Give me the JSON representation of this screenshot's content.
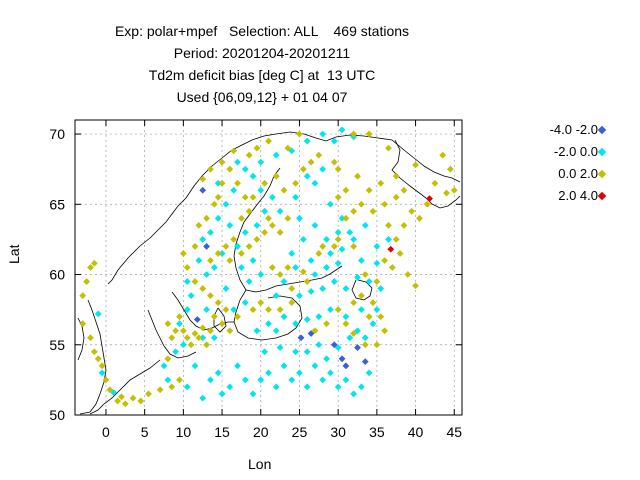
{
  "chart_data": {
    "type": "scatter",
    "title": [
      "Exp: polar+mpef   Selection: ALL    469 stations",
      "Period: 20201204-20201211",
      "Td2m deficit bias [deg C] at  13 UTC",
      "Used {06,09,12} + 01 04 07"
    ],
    "xlabel": "Lon",
    "ylabel": "Lat",
    "xlim": [
      -4,
      46
    ],
    "ylim": [
      50,
      71
    ],
    "xticks": [
      0,
      5,
      10,
      15,
      20,
      25,
      30,
      35,
      40,
      45
    ],
    "yticks": [
      50,
      55,
      60,
      65,
      70
    ],
    "grid": true,
    "legend_position": "right",
    "series": [
      {
        "name": "-4.0 -2.0",
        "color": "#3a5fd9",
        "points": [
          [
            12.5,
            66.0
          ],
          [
            13.0,
            62.0
          ],
          [
            11.8,
            56.8
          ],
          [
            25.2,
            55.5
          ],
          [
            26.5,
            55.8
          ],
          [
            29.5,
            55.0
          ],
          [
            30.5,
            54.0
          ],
          [
            31.0,
            53.5
          ],
          [
            32.5,
            54.8
          ],
          [
            33.5,
            53.8
          ]
        ]
      },
      {
        "name": "-2.0 0.0",
        "color": "#00e5ee",
        "points": [
          [
            -1.0,
            57.2
          ],
          [
            -0.5,
            53.0
          ],
          [
            1.0,
            51.6
          ],
          [
            7.5,
            53.5
          ],
          [
            8.0,
            52.5
          ],
          [
            9.0,
            54.5
          ],
          [
            10.5,
            52.0
          ],
          [
            11.5,
            53.5
          ],
          [
            12.5,
            51.2
          ],
          [
            13.5,
            52.5
          ],
          [
            14.5,
            53.0
          ],
          [
            15.0,
            51.5
          ],
          [
            16.0,
            52.0
          ],
          [
            17.0,
            53.5
          ],
          [
            18.0,
            52.5
          ],
          [
            19.0,
            51.5
          ],
          [
            20.0,
            52.5
          ],
          [
            21.0,
            53.0
          ],
          [
            22.0,
            52.0
          ],
          [
            23.0,
            53.5
          ],
          [
            24.0,
            52.5
          ],
          [
            25.0,
            53.0
          ],
          [
            26.0,
            52.0
          ],
          [
            27.0,
            53.5
          ],
          [
            28.0,
            52.5
          ],
          [
            29.0,
            53.0
          ],
          [
            30.0,
            52.0
          ],
          [
            31.0,
            52.5
          ],
          [
            32.0,
            51.5
          ],
          [
            33.0,
            52.0
          ],
          [
            34.0,
            53.0
          ],
          [
            20.5,
            54.5
          ],
          [
            22.5,
            54.8
          ],
          [
            24.5,
            54.5
          ],
          [
            26.0,
            54.5
          ],
          [
            27.5,
            55.0
          ],
          [
            28.5,
            54.0
          ],
          [
            30.0,
            54.8
          ],
          [
            31.5,
            55.5
          ],
          [
            32.5,
            56.0
          ],
          [
            33.5,
            55.5
          ],
          [
            34.5,
            56.5
          ],
          [
            35.0,
            57.5
          ],
          [
            33.0,
            57.5
          ],
          [
            31.0,
            57.0
          ],
          [
            29.0,
            57.5
          ],
          [
            27.5,
            57.0
          ],
          [
            26.0,
            56.8
          ],
          [
            24.5,
            56.5
          ],
          [
            23.0,
            57.0
          ],
          [
            22.0,
            56.0
          ],
          [
            21.0,
            56.5
          ],
          [
            19.5,
            56.0
          ],
          [
            25.0,
            58.5
          ],
          [
            26.5,
            58.8
          ],
          [
            28.0,
            59.0
          ],
          [
            29.5,
            59.5
          ],
          [
            31.0,
            59.0
          ],
          [
            32.5,
            59.8
          ],
          [
            34.0,
            59.5
          ],
          [
            35.5,
            59.0
          ],
          [
            27.0,
            60.0
          ],
          [
            28.5,
            60.5
          ],
          [
            30.0,
            60.8
          ],
          [
            24.5,
            60.5
          ],
          [
            23.0,
            59.5
          ],
          [
            22.0,
            58.5
          ],
          [
            20.0,
            60.0
          ],
          [
            18.5,
            59.5
          ],
          [
            19.0,
            61.0
          ],
          [
            17.5,
            60.5
          ],
          [
            17.0,
            62.0
          ],
          [
            18.0,
            63.0
          ],
          [
            19.5,
            63.5
          ],
          [
            20.5,
            64.5
          ],
          [
            21.5,
            65.5
          ],
          [
            22.5,
            64.5
          ],
          [
            20.0,
            66.0
          ],
          [
            19.0,
            67.0
          ],
          [
            18.0,
            67.5
          ],
          [
            16.5,
            66.0
          ],
          [
            15.5,
            65.0
          ],
          [
            14.5,
            64.0
          ],
          [
            13.5,
            63.0
          ],
          [
            12.5,
            62.5
          ],
          [
            12.0,
            61.0
          ],
          [
            13.0,
            60.0
          ],
          [
            14.0,
            60.5
          ],
          [
            15.0,
            61.5
          ],
          [
            16.0,
            63.5
          ],
          [
            14.5,
            66.5
          ],
          [
            17.0,
            68.0
          ],
          [
            20.0,
            68.0
          ],
          [
            22.0,
            68.5
          ],
          [
            24.0,
            68.8
          ],
          [
            26.0,
            69.5
          ],
          [
            28.0,
            70.0
          ],
          [
            29.5,
            69.5
          ],
          [
            30.5,
            70.3
          ],
          [
            32.0,
            69.8
          ],
          [
            27.0,
            66.5
          ],
          [
            29.0,
            65.0
          ],
          [
            30.5,
            64.0
          ],
          [
            31.5,
            63.0
          ],
          [
            30.0,
            63.0
          ],
          [
            28.5,
            62.5
          ],
          [
            29.0,
            61.5
          ],
          [
            30.5,
            61.8
          ],
          [
            32.0,
            62.5
          ],
          [
            33.5,
            63.5
          ],
          [
            35.0,
            62.0
          ],
          [
            36.5,
            62.5
          ],
          [
            35.0,
            60.8
          ],
          [
            33.0,
            61.0
          ],
          [
            10.5,
            57.5
          ],
          [
            9.5,
            56.5
          ],
          [
            10.0,
            55.0
          ],
          [
            12.5,
            55.5
          ],
          [
            14.0,
            55.5
          ],
          [
            13.0,
            57.5
          ],
          [
            11.0,
            58.5
          ],
          [
            10.5,
            59.5
          ],
          [
            16.5,
            57.5
          ],
          [
            18.0,
            58.0
          ],
          [
            15.5,
            59.0
          ],
          [
            24.0,
            61.5
          ],
          [
            26.5,
            61.0
          ],
          [
            25.5,
            62.5
          ],
          [
            27.0,
            63.5
          ],
          [
            25.0,
            64.0
          ],
          [
            24.5,
            65.5
          ],
          [
            26.0,
            67.0
          ],
          [
            28.0,
            67.5
          ]
        ]
      },
      {
        "name": "0.0 2.0",
        "color": "#c2c000",
        "points": [
          [
            -3.0,
            58.5
          ],
          [
            -2.5,
            59.5
          ],
          [
            -2.0,
            60.5
          ],
          [
            -1.5,
            60.8
          ],
          [
            -3.0,
            56.5
          ],
          [
            -2.0,
            55.5
          ],
          [
            -1.5,
            54.5
          ],
          [
            -1.0,
            54.0
          ],
          [
            -0.5,
            53.5
          ],
          [
            0.0,
            52.5
          ],
          [
            0.5,
            51.8
          ],
          [
            1.5,
            51.0
          ],
          [
            2.0,
            51.3
          ],
          [
            2.5,
            50.8
          ],
          [
            3.5,
            51.2
          ],
          [
            4.5,
            51.0
          ],
          [
            5.5,
            51.5
          ],
          [
            7.0,
            51.8
          ],
          [
            8.5,
            52.0
          ],
          [
            9.5,
            52.5
          ],
          [
            8.0,
            54.0
          ],
          [
            8.5,
            55.5
          ],
          [
            9.0,
            56.0
          ],
          [
            8.0,
            56.5
          ],
          [
            9.5,
            57.0
          ],
          [
            10.0,
            56.0
          ],
          [
            10.5,
            55.5
          ],
          [
            11.0,
            55.0
          ],
          [
            11.5,
            55.8
          ],
          [
            12.0,
            55.5
          ],
          [
            12.5,
            56.2
          ],
          [
            13.0,
            55.0
          ],
          [
            13.5,
            56.0
          ],
          [
            14.0,
            57.0
          ],
          [
            15.0,
            56.5
          ],
          [
            15.5,
            57.5
          ],
          [
            16.0,
            56.0
          ],
          [
            17.0,
            57.0
          ],
          [
            14.5,
            58.0
          ],
          [
            13.5,
            58.5
          ],
          [
            12.5,
            59.0
          ],
          [
            11.5,
            59.5
          ],
          [
            10.5,
            60.5
          ],
          [
            10.0,
            61.5
          ],
          [
            11.5,
            62.0
          ],
          [
            12.0,
            63.5
          ],
          [
            13.0,
            64.0
          ],
          [
            14.0,
            65.0
          ],
          [
            14.5,
            65.5
          ],
          [
            15.0,
            66.5
          ],
          [
            16.0,
            67.5
          ],
          [
            17.0,
            66.5
          ],
          [
            18.0,
            65.5
          ],
          [
            18.5,
            64.5
          ],
          [
            17.5,
            64.0
          ],
          [
            16.5,
            62.5
          ],
          [
            15.5,
            62.0
          ],
          [
            16.0,
            61.0
          ],
          [
            14.5,
            61.5
          ],
          [
            13.5,
            61.0
          ],
          [
            17.5,
            61.5
          ],
          [
            18.5,
            62.0
          ],
          [
            19.5,
            62.5
          ],
          [
            20.5,
            63.0
          ],
          [
            21.5,
            63.5
          ],
          [
            22.5,
            63.0
          ],
          [
            23.5,
            64.0
          ],
          [
            21.0,
            64.0
          ],
          [
            19.0,
            65.5
          ],
          [
            20.5,
            66.5
          ],
          [
            22.0,
            67.0
          ],
          [
            23.0,
            66.0
          ],
          [
            24.5,
            66.5
          ],
          [
            25.5,
            67.5
          ],
          [
            26.5,
            68.0
          ],
          [
            27.5,
            68.5
          ],
          [
            18.5,
            68.5
          ],
          [
            19.5,
            69.0
          ],
          [
            21.0,
            69.5
          ],
          [
            23.5,
            69.0
          ],
          [
            25.0,
            70.0
          ],
          [
            16.5,
            68.8
          ],
          [
            15.0,
            68.0
          ],
          [
            13.5,
            67.5
          ],
          [
            12.5,
            66.8
          ],
          [
            21.5,
            60.5
          ],
          [
            22.5,
            60.0
          ],
          [
            23.5,
            60.5
          ],
          [
            25.5,
            60.2
          ],
          [
            26.0,
            59.5
          ],
          [
            24.0,
            59.0
          ],
          [
            27.5,
            61.5
          ],
          [
            28.0,
            62.0
          ],
          [
            29.5,
            62.0
          ],
          [
            30.0,
            62.5
          ],
          [
            31.0,
            64.0
          ],
          [
            32.0,
            64.5
          ],
          [
            33.0,
            65.0
          ],
          [
            34.5,
            64.5
          ],
          [
            36.0,
            65.0
          ],
          [
            37.5,
            65.5
          ],
          [
            38.5,
            66.0
          ],
          [
            39.5,
            64.5
          ],
          [
            40.5,
            64.0
          ],
          [
            41.5,
            65.0
          ],
          [
            42.5,
            66.5
          ],
          [
            43.5,
            68.5
          ],
          [
            44.5,
            67.5
          ],
          [
            45.0,
            66.0
          ],
          [
            44.0,
            65.8
          ],
          [
            37.5,
            67.0
          ],
          [
            35.5,
            66.5
          ],
          [
            34.0,
            66.0
          ],
          [
            32.5,
            67.0
          ],
          [
            30.0,
            67.5
          ],
          [
            29.5,
            68.0
          ],
          [
            32.0,
            70.0
          ],
          [
            34.0,
            70.0
          ],
          [
            36.5,
            69.0
          ],
          [
            40.0,
            67.8
          ],
          [
            31.0,
            66.0
          ],
          [
            30.0,
            65.5
          ],
          [
            32.0,
            62.0
          ],
          [
            33.5,
            60.0
          ],
          [
            35.0,
            59.5
          ],
          [
            36.0,
            61.0
          ],
          [
            37.0,
            60.5
          ],
          [
            38.0,
            61.5
          ],
          [
            39.0,
            60.0
          ],
          [
            40.0,
            59.2
          ],
          [
            37.5,
            62.5
          ],
          [
            38.5,
            63.5
          ],
          [
            36.5,
            63.5
          ],
          [
            27.0,
            56.0
          ],
          [
            28.5,
            56.5
          ],
          [
            30.0,
            57.5
          ],
          [
            32.0,
            58.0
          ],
          [
            33.0,
            58.5
          ],
          [
            34.5,
            58.0
          ],
          [
            35.5,
            57.0
          ],
          [
            36.0,
            56.0
          ],
          [
            35.0,
            55.0
          ],
          [
            33.5,
            55.0
          ],
          [
            32.0,
            55.8
          ],
          [
            31.0,
            56.5
          ],
          [
            34.0,
            57.0
          ],
          [
            20.0,
            58.0
          ],
          [
            19.0,
            57.5
          ],
          [
            21.0,
            57.5
          ],
          [
            22.5,
            57.5
          ],
          [
            24.0,
            58.0
          ]
        ]
      },
      {
        "name": "2.0 4.0",
        "color": "#e00000",
        "points": [
          [
            36.8,
            61.8
          ],
          [
            41.8,
            65.4
          ]
        ]
      }
    ]
  }
}
